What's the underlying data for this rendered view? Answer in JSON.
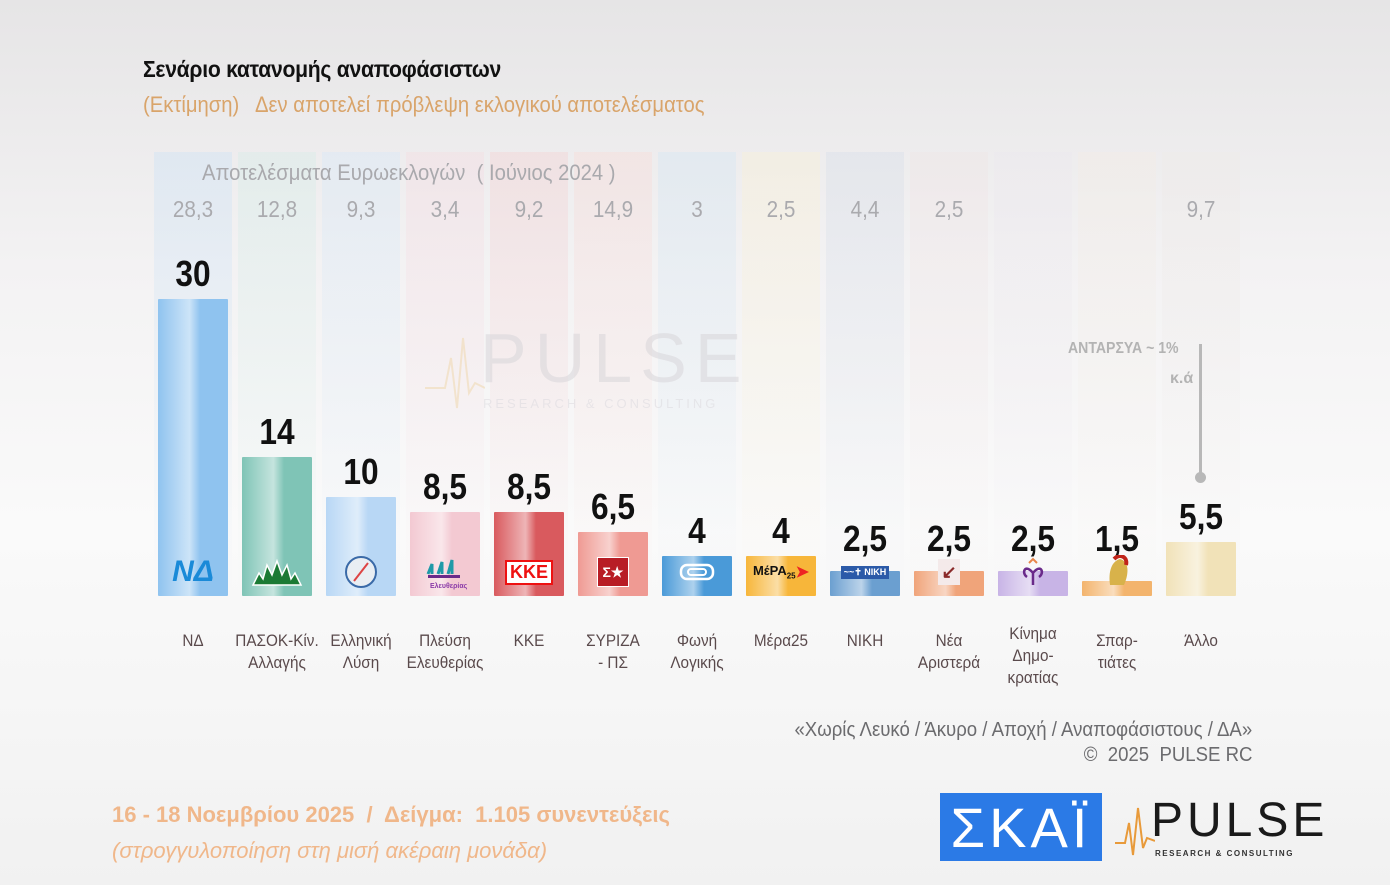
{
  "header": {
    "title": "Σενάριο κατανομής αναποφάσιστων",
    "subtitle": "(Εκτίμηση)   Δεν αποτελεί πρόβλεψη εκλογικού αποτελέσματος"
  },
  "chart_data": {
    "type": "bar",
    "title": "Σενάριο κατανομής αναποφάσιστων",
    "subtitle": "(Εκτίμηση) Δεν αποτελεί πρόβλεψη εκλογικού αποτελέσματος",
    "xlabel": "",
    "ylabel": "",
    "ylim": [
      0,
      30
    ],
    "grid": false,
    "legend": "none",
    "categories": [
      "ΝΔ",
      "ΠΑΣΟΚ-Κίν.\nΑλλαγής",
      "Ελληνική\nΛύση",
      "Πλεύση\nΕλευθερίας",
      "ΚΚΕ",
      "ΣΥΡΙΖΑ\n- ΠΣ",
      "Φωνή\nΛογικής",
      "Μέρα25",
      "ΝΙΚΗ",
      "Νέα\nΑριστερά",
      "Κίνημα\nΔημο-\nκρατίας",
      "Σπαρ-\nτιάτες",
      "Άλλο"
    ],
    "series": [
      {
        "name": "Εκτίμηση",
        "values": [
          30,
          14,
          10,
          8.5,
          8.5,
          6.5,
          4,
          4,
          2.5,
          2.5,
          2.5,
          1.5,
          5.5
        ],
        "labels": [
          "30",
          "14",
          "10",
          "8,5",
          "8,5",
          "6,5",
          "4",
          "4",
          "2,5",
          "2,5",
          "2,5",
          "1,5",
          "5,5"
        ]
      },
      {
        "name": "Αποτελέσματα Ευρωεκλογών ( Ιούνιος 2024 )",
        "values": [
          28.3,
          12.8,
          9.3,
          3.4,
          9.2,
          14.9,
          3,
          2.5,
          4.4,
          2.5,
          null,
          null,
          9.7
        ],
        "labels": [
          "28,3",
          "12,8",
          "9,3",
          "3,4",
          "9,2",
          "14,9",
          "3",
          "2,5",
          "4,4",
          "2,5",
          "",
          "",
          "9,7"
        ]
      }
    ],
    "bar_colors": [
      "#8fc3ef",
      "#7fc4b6",
      "#b8d7f5",
      "#f3c9d2",
      "#d95a5e",
      "#ef9a93",
      "#4a9ad8",
      "#f7b63a",
      "#6b9fd0",
      "#f0a47a",
      "#c8b4e6",
      "#f3b46d",
      "#f1e2b8"
    ],
    "column_tints": [
      "#cfe3f5",
      "#d7ece8",
      "#d9e8f6",
      "#f4dde3",
      "#f3d3d5",
      "#f6dcda",
      "#d6e6f2",
      "#f8f0d8",
      "#d9dfe9",
      "#efe5e6",
      "#ece8ee",
      "#f2ece6",
      "#eeeae8"
    ],
    "logos": [
      "ΝΔ",
      "sun",
      "compass",
      "ships",
      "ΚΚΕ",
      "ΣΥ",
      "meander",
      "ΜέΡΑ25",
      "ΝΙΚΗ",
      "arrow",
      "flower",
      "helmet",
      ""
    ],
    "annotation": {
      "text": "ΑΝΤΑΡΣΥΑ ~ 1%",
      "subtext": "κ.ά",
      "target": "Άλλο"
    }
  },
  "euro_header": "Αποτελέσματα Ευρωεκλογών  ( Ιούνιος 2024 )",
  "watermark": {
    "brand": "PULSE",
    "tagline": "RESEARCH & CONSULTING"
  },
  "notes": {
    "exclusion": "«Χωρίς Λευκό / Άκυρο / Αποχή / Αναποφάσιστους / ΔΑ»",
    "copyright": "©  2025  PULSE RC"
  },
  "footer": {
    "fieldwork": "16 - 18 Νοεμβρίου 2025  /  Δείγμα:  1.105 συνεντεύξεις",
    "rounding": "(στρογγυλοποίηση στη μισή ακέραιη μονάδα)"
  },
  "brands": {
    "channel": "ΣΚΑΪ",
    "pollster": "PULSE",
    "pollster_tagline": "RESEARCH & CONSULTING",
    "channel_color": "#2b7ae6",
    "accent_color": "#f0b78a"
  }
}
